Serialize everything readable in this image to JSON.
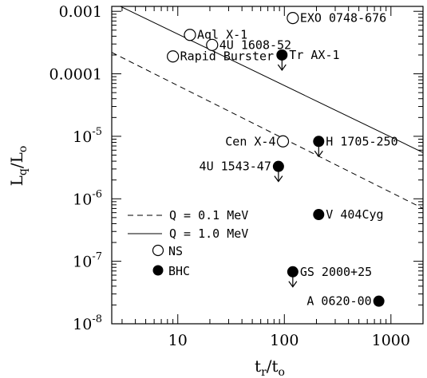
{
  "chart_data": {
    "type": "scatter",
    "xlabel_main": "t",
    "xlabel_sub1": "r",
    "xlabel_slash": "/t",
    "xlabel_sub2": "o",
    "ylabel_main": "L",
    "ylabel_sub1": "q",
    "ylabel_slash": "/L",
    "ylabel_sub2": "o",
    "x_scale": "log",
    "y_scale": "log",
    "xlim": [
      2.4,
      2000
    ],
    "ylim": [
      1e-08,
      0.0012
    ],
    "x_ticks": [
      {
        "value": 10,
        "label": "10"
      },
      {
        "value": 100,
        "label": "100"
      },
      {
        "value": 1000,
        "label": "1000"
      }
    ],
    "y_ticks": [
      {
        "value": 0.001,
        "mant": "0.001",
        "exp": ""
      },
      {
        "value": 0.0001,
        "mant": "0.0001",
        "exp": ""
      },
      {
        "value": 1e-05,
        "mant": "10",
        "exp": "-5"
      },
      {
        "value": 1e-06,
        "mant": "10",
        "exp": "-6"
      },
      {
        "value": 1e-07,
        "mant": "10",
        "exp": "-7"
      },
      {
        "value": 1e-08,
        "mant": "10",
        "exp": "-8"
      }
    ],
    "lines": [
      {
        "name": "Q = 1.0 MeV",
        "style": "solid",
        "x": [
          2.4,
          2000
        ],
        "y": [
          0.0014,
          5.5e-06
        ]
      },
      {
        "name": "Q = 0.1 MeV",
        "style": "dashed",
        "x": [
          2.4,
          2000
        ],
        "y": [
          0.00022,
          7e-07
        ]
      }
    ],
    "legend": [
      {
        "label": "Q = 0.1 MeV",
        "style": "dashed"
      },
      {
        "label": "Q = 1.0 MeV",
        "style": "solid"
      },
      {
        "label": "NS",
        "marker": "open"
      },
      {
        "label": "BHC",
        "marker": "filled"
      }
    ],
    "points": [
      {
        "label": "EXO 0748-676",
        "x": 120,
        "y": 0.00078,
        "marker": "open",
        "upper_limit": false,
        "label_side": "right"
      },
      {
        "label": "Aql X-1",
        "x": 13,
        "y": 0.00042,
        "marker": "open",
        "upper_limit": false,
        "label_side": "right"
      },
      {
        "label": "4U 1608-52",
        "x": 21,
        "y": 0.00029,
        "marker": "open",
        "upper_limit": false,
        "label_side": "right"
      },
      {
        "label": "Rapid Burster",
        "x": 9,
        "y": 0.00019,
        "marker": "open",
        "upper_limit": false,
        "label_side": "right"
      },
      {
        "label": "Tr AX-1",
        "x": 95,
        "y": 0.0002,
        "marker": "filled",
        "upper_limit": true,
        "label_side": "right"
      },
      {
        "label": "Cen X-4",
        "x": 97,
        "y": 8.3e-06,
        "marker": "open",
        "upper_limit": false,
        "label_side": "left"
      },
      {
        "label": "H 1705-250",
        "x": 210,
        "y": 8.3e-06,
        "marker": "filled",
        "upper_limit": true,
        "label_side": "right"
      },
      {
        "label": "4U 1543-47",
        "x": 88,
        "y": 3.3e-06,
        "marker": "filled",
        "upper_limit": true,
        "label_side": "left"
      },
      {
        "label": "V 404Cyg",
        "x": 210,
        "y": 5.6e-07,
        "marker": "filled",
        "upper_limit": false,
        "label_side": "right"
      },
      {
        "label": "GS 2000+25",
        "x": 120,
        "y": 6.8e-08,
        "marker": "filled",
        "upper_limit": true,
        "label_side": "right"
      },
      {
        "label": "A 0620-00",
        "x": 770,
        "y": 2.3e-08,
        "marker": "filled",
        "upper_limit": false,
        "label_side": "left"
      }
    ]
  }
}
